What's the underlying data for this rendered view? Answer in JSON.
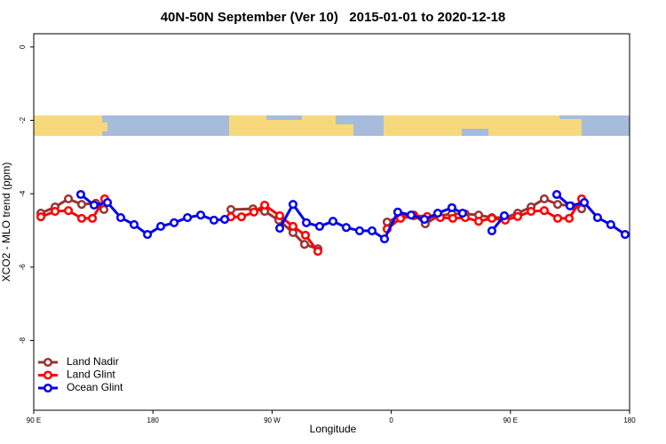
{
  "chart_data": {
    "type": "line",
    "title": "40N-50N September (Ver 10)   2015-01-01 to 2020-12-18",
    "x_label": "Longitude",
    "y_label": "XCO2 - MLO trend (ppm)",
    "xlim": [
      90,
      540
    ],
    "ylim": [
      -9.9,
      0.36
    ],
    "xticks": [
      {
        "value": 90,
        "label": "90 E"
      },
      180,
      {
        "value": 270,
        "label": "90 W"
      },
      {
        "value": 360,
        "label": "0"
      },
      {
        "value": 450,
        "label": "90 E"
      },
      {
        "value": 540,
        "label": "180"
      }
    ],
    "yticks": [
      0,
      -2,
      -4,
      -6,
      -8
    ],
    "legend": "bottom-left",
    "series": [
      {
        "name": "Land Nadir",
        "color": "#993333",
        "x": [
          95.4,
          106.1,
          116.2,
          126.2,
          136.9,
          143,
          null,
          238.9,
          255.6,
          264.4,
          275.1,
          285.8,
          294.5,
          304.6,
          null,
          356.9,
          367,
          377,
          385.7,
          395.8,
          405.8,
          415.9,
          426,
          436,
          446.1,
          455.5,
          465.6,
          475.6,
          485.7,
          495.7,
          503.8
        ],
        "values": [
          -4.53,
          -4.36,
          -4.14,
          -4.29,
          -4.26,
          -4.43,
          null,
          -4.43,
          -4.41,
          -4.48,
          -4.72,
          -5.06,
          -5.38,
          -5.5,
          null,
          -4.77,
          -4.6,
          -4.58,
          -4.82,
          -4.6,
          -4.55,
          -4.55,
          -4.58,
          -4.65,
          -4.65,
          -4.53,
          -4.36,
          -4.14,
          -4.29,
          -4.33,
          -4.41
        ]
      },
      {
        "name": "Land Glint",
        "color": "#ff0000",
        "x": [
          95.4,
          106.1,
          116.2,
          126.2,
          134.3,
          143.6,
          null,
          238.9,
          246.9,
          256.3,
          264.4,
          275.8,
          285.8,
          295.2,
          304.6,
          null,
          356.9,
          367,
          377,
          387.1,
          397.1,
          406.5,
          415.9,
          426,
          436,
          446.1,
          455.5,
          465.6,
          475.6,
          485.7,
          494.4,
          503.8
        ],
        "values": [
          -4.63,
          -4.48,
          -4.46,
          -4.67,
          -4.67,
          -4.14,
          null,
          -4.63,
          -4.63,
          -4.5,
          -4.31,
          -4.6,
          -4.89,
          -5.13,
          -5.57,
          null,
          -4.96,
          -4.67,
          -4.6,
          -4.62,
          -4.65,
          -4.67,
          -4.65,
          -4.75,
          -4.67,
          -4.72,
          -4.62,
          -4.48,
          -4.46,
          -4.67,
          -4.67,
          -4.14
        ]
      },
      {
        "name": "Ocean Glint",
        "color": "#0000ee",
        "x": [
          125.5,
          135.6,
          145.7,
          155.7,
          165.8,
          175.9,
          185.9,
          196,
          206.1,
          216.1,
          226.1,
          234.2,
          null,
          275.8,
          285.8,
          295.9,
          305.9,
          316,
          326,
          336.1,
          345.5,
          354.9,
          364.9,
          375,
          385.1,
          395.1,
          405.8,
          413.9,
          null,
          436,
          445.4,
          null,
          485,
          495,
          505.8,
          515.8,
          525.8,
          536.6
        ],
        "values": [
          -4.02,
          -4.31,
          -4.24,
          -4.65,
          -4.84,
          -5.11,
          -4.89,
          -4.79,
          -4.65,
          -4.58,
          -4.72,
          -4.7,
          null,
          -4.94,
          -4.29,
          -4.79,
          -4.89,
          -4.75,
          -4.92,
          -5.01,
          -5.01,
          -5.23,
          -4.5,
          -4.58,
          -4.7,
          -4.53,
          -4.38,
          -4.53,
          null,
          -5.01,
          -4.6,
          null,
          -4.02,
          -4.33,
          -4.24,
          -4.65,
          -4.84,
          -5.11
        ]
      }
    ]
  }
}
